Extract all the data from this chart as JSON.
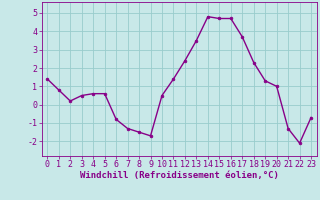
{
  "x": [
    0,
    1,
    2,
    3,
    4,
    5,
    6,
    7,
    8,
    9,
    10,
    11,
    12,
    13,
    14,
    15,
    16,
    17,
    18,
    19,
    20,
    21,
    22,
    23
  ],
  "y": [
    1.4,
    0.8,
    0.2,
    0.5,
    0.6,
    0.6,
    -0.8,
    -1.3,
    -1.5,
    -1.7,
    0.5,
    1.4,
    2.4,
    3.5,
    4.8,
    4.7,
    4.7,
    3.7,
    2.3,
    1.3,
    1.0,
    -1.3,
    -2.1,
    -0.7
  ],
  "line_color": "#880088",
  "marker_color": "#880088",
  "bg_color": "#c8e8e8",
  "grid_color": "#99cccc",
  "xlabel": "Windchill (Refroidissement éolien,°C)",
  "xlabel_color": "#880088",
  "ylim": [
    -2.8,
    5.6
  ],
  "yticks": [
    -2,
    -1,
    0,
    1,
    2,
    3,
    4,
    5
  ],
  "xlim": [
    -0.5,
    23.5
  ],
  "xticks": [
    0,
    1,
    2,
    3,
    4,
    5,
    6,
    7,
    8,
    9,
    10,
    11,
    12,
    13,
    14,
    15,
    16,
    17,
    18,
    19,
    20,
    21,
    22,
    23
  ],
  "tick_color": "#880088",
  "spine_color": "#880088",
  "font_size_xlabel": 6.5,
  "font_size_ticks": 6.0,
  "line_width": 1.0,
  "marker_size": 2.0
}
